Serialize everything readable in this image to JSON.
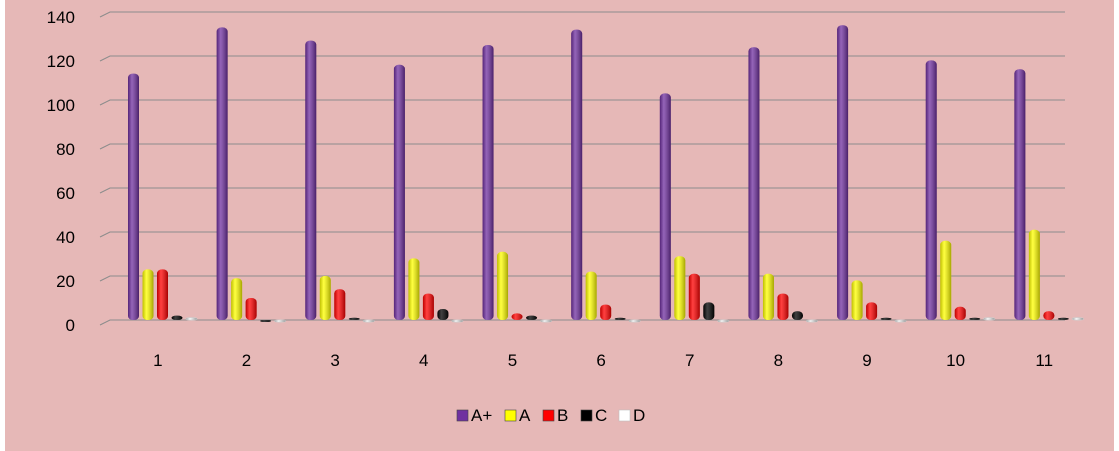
{
  "chart_data": {
    "type": "bar",
    "categories": [
      "1",
      "2",
      "3",
      "4",
      "5",
      "6",
      "7",
      "8",
      "9",
      "10",
      "11"
    ],
    "series": [
      {
        "name": "A+",
        "color": "#7030a0",
        "values": [
          112,
          133,
          127,
          116,
          125,
          132,
          103,
          124,
          134,
          118,
          114
        ]
      },
      {
        "name": "A",
        "color": "#ffff00",
        "values": [
          23,
          19,
          20,
          28,
          31,
          22,
          29,
          21,
          18,
          36,
          41
        ]
      },
      {
        "name": "B",
        "color": "#ff0000",
        "values": [
          23,
          10,
          14,
          12,
          3,
          7,
          21,
          12,
          8,
          6,
          4
        ]
      },
      {
        "name": "C",
        "color": "#000000",
        "values": [
          2,
          0,
          1,
          5,
          2,
          1,
          8,
          4,
          1,
          1,
          1
        ]
      },
      {
        "name": "D",
        "color": "#ffffff",
        "values": [
          1,
          0,
          0,
          0,
          0,
          0,
          0,
          0,
          0,
          1,
          1
        ]
      }
    ],
    "yticks": [
      0,
      20,
      40,
      60,
      80,
      100,
      120,
      140
    ],
    "ylim": [
      0,
      140
    ],
    "grid": true,
    "legend": "bottom"
  }
}
